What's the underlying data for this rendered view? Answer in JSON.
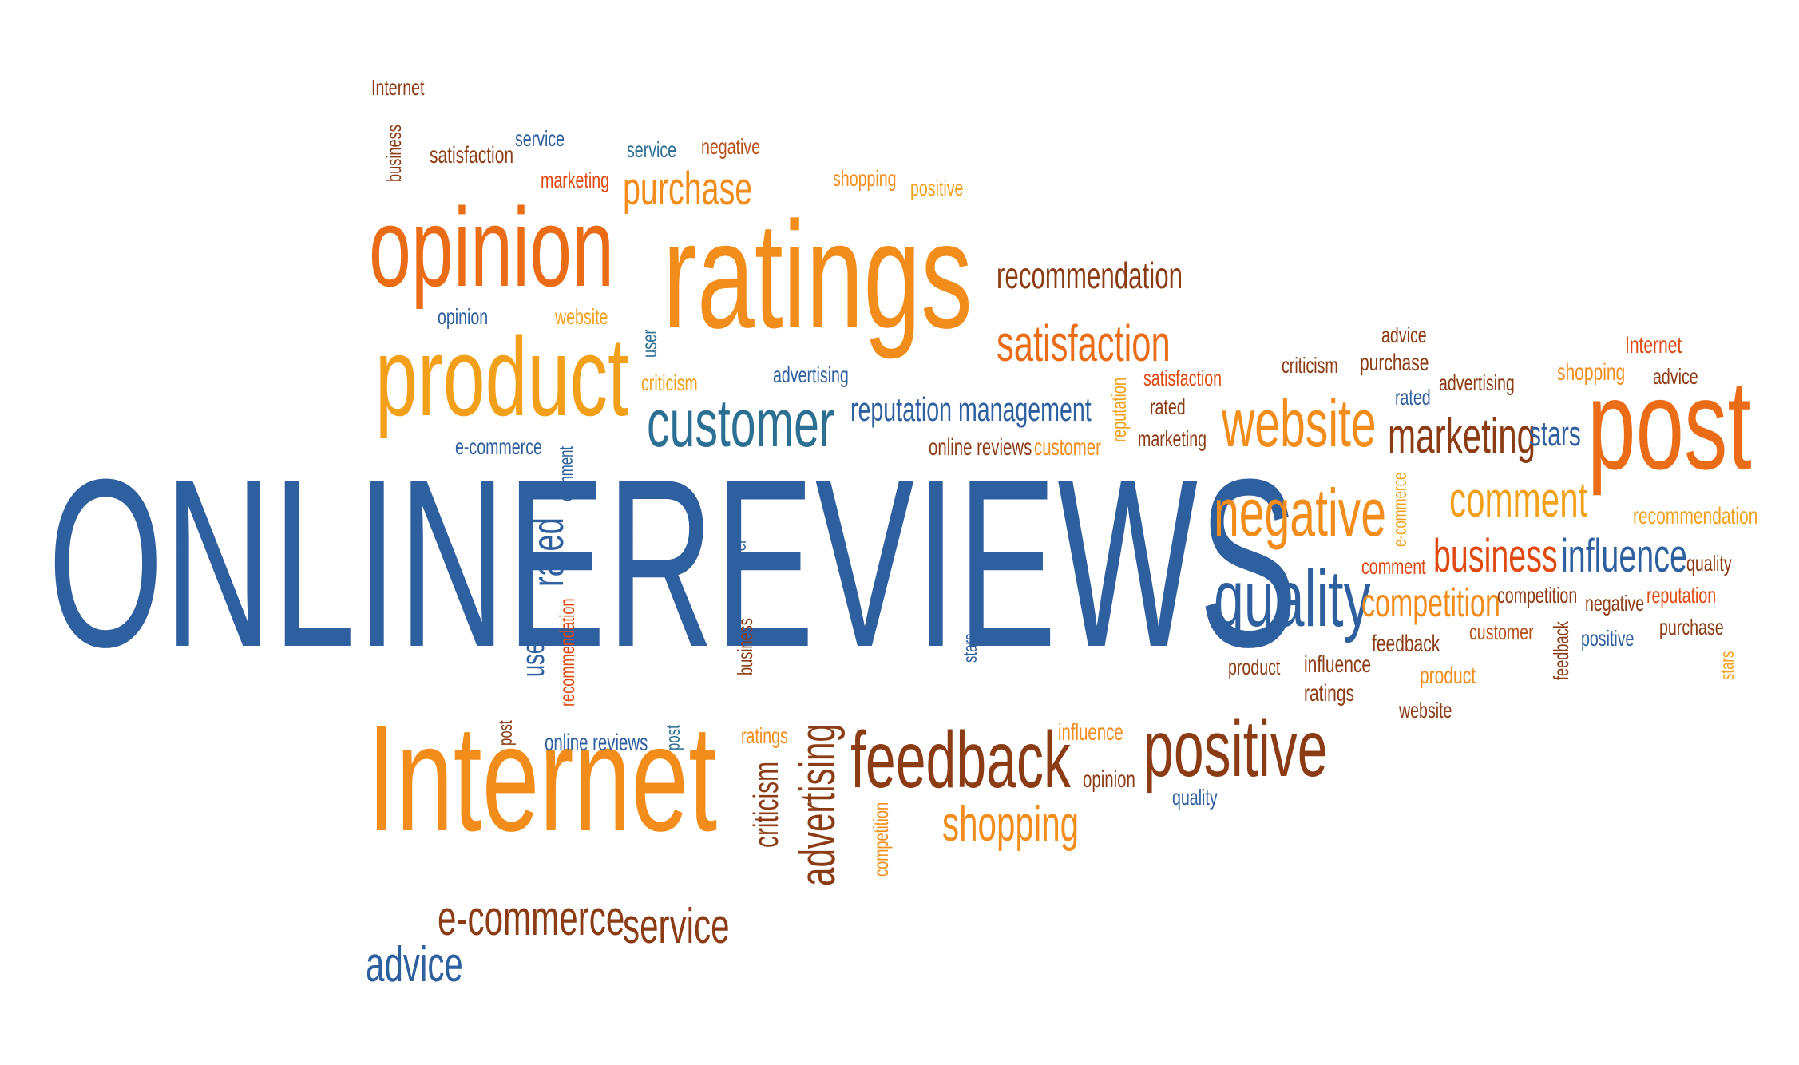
{
  "colors": {
    "blue": "#2e5f9e",
    "orange": "#f28c1a",
    "darkorange": "#ea6c17",
    "brown": "#8c3c14",
    "red": "#e04a10",
    "teal": "#2b6f93",
    "gold": "#f2a01a",
    "rust": "#b5521a"
  },
  "headline": {
    "line_a": "ONLINE",
    "line_b": "REVIEWS"
  },
  "words": [
    "Internet",
    "business",
    "satisfaction",
    "service",
    "service",
    "negative",
    "marketing",
    "shopping",
    "positive",
    "opinion",
    "purchase",
    "ratings",
    "recommendation",
    "opinion",
    "website",
    "user",
    "product",
    "satisfaction",
    "criticism",
    "advertising",
    "customer",
    "reputation management",
    "reputation",
    "satisfaction",
    "rated",
    "marketing",
    "online reviews",
    "customer",
    "e-commerce",
    "comment",
    "rated",
    "user",
    "recommendation",
    "user",
    "business",
    "stars",
    "Internet",
    "post",
    "online reviews",
    "post",
    "ratings",
    "criticism",
    "advertising",
    "feedback",
    "competition",
    "shopping",
    "influence",
    "positive",
    "opinion",
    "quality",
    "e-commerce",
    "service",
    "advice",
    "criticism",
    "advice",
    "purchase",
    "Internet",
    "advice",
    "advertising",
    "shopping",
    "website",
    "marketing",
    "stars",
    "post",
    "rated",
    "negative",
    "e-commerce",
    "comment",
    "recommendation",
    "business",
    "influence",
    "quality",
    "comment",
    "competition",
    "competition",
    "negative",
    "reputation",
    "quality",
    "customer",
    "feedback",
    "positive",
    "purchase",
    "feedback",
    "product",
    "influence",
    "ratings",
    "product",
    "website",
    "stars"
  ]
}
